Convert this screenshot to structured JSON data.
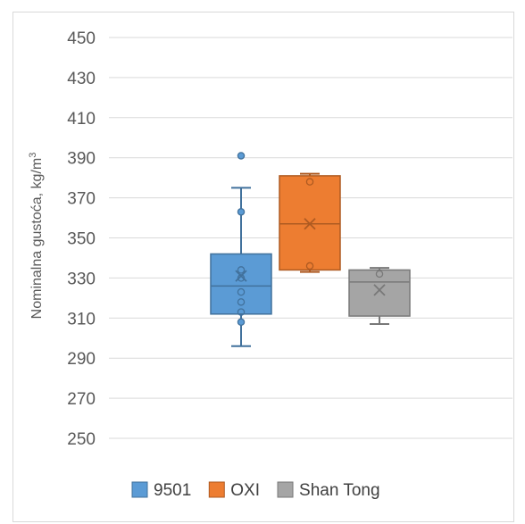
{
  "chart_data": {
    "type": "box",
    "title": "",
    "xlabel": "",
    "ylabel": "Nominalna gustoća, kg/m",
    "ylabel_sup": "3",
    "ylim": [
      250,
      450
    ],
    "yticks": [
      250,
      270,
      290,
      310,
      330,
      350,
      370,
      390,
      410,
      430,
      450
    ],
    "ytick_labels": [
      "250",
      "270",
      "290",
      "310",
      "330",
      "350",
      "370",
      "390",
      "410",
      "430",
      "450"
    ],
    "grid": true,
    "legend_position": "bottom",
    "series": [
      {
        "name": "9501",
        "color": "#5b9bd5",
        "stroke": "#41719c",
        "min": 296,
        "q1": 312,
        "median": 326,
        "q3": 342,
        "max": 375,
        "mean": 331,
        "points": [
          391,
          363,
          334,
          330,
          323,
          318,
          313,
          308
        ]
      },
      {
        "name": "OXI",
        "color": "#ed7d31",
        "stroke": "#ae5a21",
        "min": 333,
        "q1": 334,
        "median": 357,
        "q3": 381,
        "max": 382,
        "mean": 357,
        "points": [
          378,
          336
        ]
      },
      {
        "name": "Shan Tong",
        "color": "#a5a5a5",
        "stroke": "#787878",
        "min": 307,
        "q1": 311,
        "median": 328,
        "q3": 334,
        "max": 335,
        "mean": 324,
        "points": [
          332
        ]
      }
    ]
  }
}
